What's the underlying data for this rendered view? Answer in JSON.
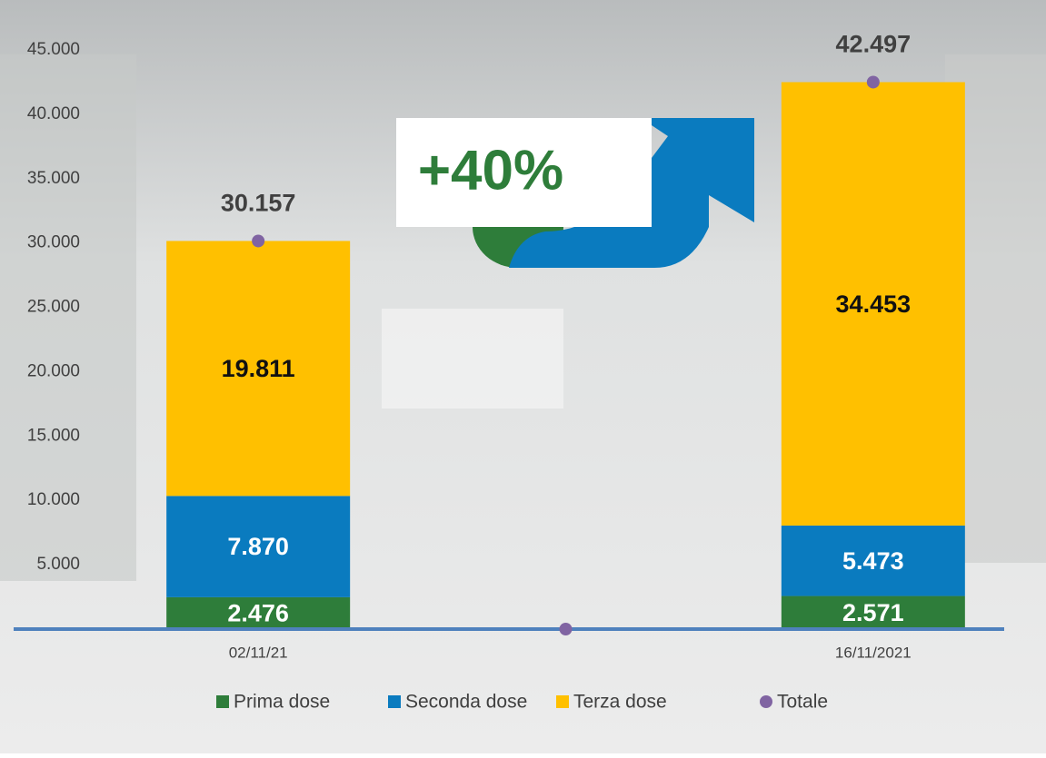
{
  "chart_data": {
    "type": "bar",
    "stacked": true,
    "annotation": "+40%",
    "categories": [
      "02/11/21",
      null,
      "16/11/2021"
    ],
    "series": [
      {
        "name": "Prima dose",
        "color": "#2e7d3a",
        "values": [
          2476,
          null,
          2571
        ],
        "value_labels": [
          "2.476",
          null,
          "2.571"
        ],
        "label_color": "#ffffff"
      },
      {
        "name": "Seconda dose",
        "color": "#0a7bbf",
        "values": [
          7870,
          null,
          5473
        ],
        "value_labels": [
          "7.870",
          null,
          "5.473"
        ],
        "label_color": "#ffffff"
      },
      {
        "name": "Terza dose",
        "color": "#ffc000",
        "values": [
          19811,
          null,
          34453
        ],
        "value_labels": [
          "19.811",
          null,
          "34.453"
        ],
        "label_color": "#111111"
      },
      {
        "name": "Totale",
        "type": "scatter",
        "color": "#8064a2",
        "values": [
          30157,
          0,
          42497
        ],
        "value_labels": [
          "30.157",
          null,
          "42.497"
        ],
        "label_color": "#404040"
      }
    ],
    "ylim": [
      0,
      45000
    ],
    "yticks": [
      {
        "value": 5000,
        "label": "5.000"
      },
      {
        "value": 10000,
        "label": "10.000"
      },
      {
        "value": 15000,
        "label": "15.000"
      },
      {
        "value": 20000,
        "label": "20.000"
      },
      {
        "value": 25000,
        "label": "25.000"
      },
      {
        "value": 30000,
        "label": "30.000"
      },
      {
        "value": 35000,
        "label": "35.000"
      },
      {
        "value": 40000,
        "label": "40.000"
      },
      {
        "value": 45000,
        "label": "45.000"
      }
    ],
    "grid": false
  }
}
